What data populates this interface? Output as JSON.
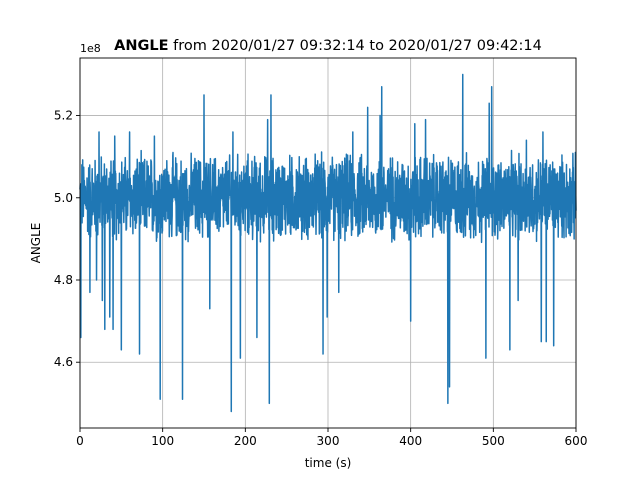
{
  "chart_data": {
    "type": "line",
    "title_bold": "ANGLE",
    "title_rest": " from 2020/01/27 09:32:14 to 2020/01/27 09:42:14",
    "xlabel": "time (s)",
    "ylabel": "ANGLE",
    "offset_label": "1e8",
    "xlim": [
      0,
      600
    ],
    "ylim": [
      4.44,
      5.34
    ],
    "y_scale_note": "values in units of 1e8",
    "xticks": [
      0,
      100,
      200,
      300,
      400,
      500,
      600
    ],
    "xtick_labels": [
      "0",
      "100",
      "200",
      "300",
      "400",
      "500",
      "600"
    ],
    "yticks": [
      4.6,
      4.8,
      5.0,
      5.2
    ],
    "ytick_labels": [
      "4.6",
      "4.8",
      "5.0",
      "5.2"
    ],
    "grid": true,
    "line_color": "#1f77b4",
    "series": [
      {
        "baseline": 5.0,
        "band_low": 4.88,
        "band_high": 5.12,
        "spikes": [
          {
            "x": 1,
            "y": 4.66
          },
          {
            "x": 12,
            "y": 4.77
          },
          {
            "x": 20,
            "y": 4.8
          },
          {
            "x": 27,
            "y": 4.75
          },
          {
            "x": 30,
            "y": 4.68
          },
          {
            "x": 36,
            "y": 4.71
          },
          {
            "x": 40,
            "y": 4.68
          },
          {
            "x": 50,
            "y": 4.63
          },
          {
            "x": 72,
            "y": 4.62
          },
          {
            "x": 97,
            "y": 4.51
          },
          {
            "x": 124,
            "y": 4.51
          },
          {
            "x": 157,
            "y": 4.73
          },
          {
            "x": 183,
            "y": 4.48
          },
          {
            "x": 194,
            "y": 4.61
          },
          {
            "x": 214,
            "y": 4.66
          },
          {
            "x": 229,
            "y": 4.5
          },
          {
            "x": 294,
            "y": 4.62
          },
          {
            "x": 299,
            "y": 4.71
          },
          {
            "x": 313,
            "y": 4.77
          },
          {
            "x": 400,
            "y": 4.7
          },
          {
            "x": 445,
            "y": 4.5
          },
          {
            "x": 447,
            "y": 4.54
          },
          {
            "x": 491,
            "y": 4.61
          },
          {
            "x": 520,
            "y": 4.63
          },
          {
            "x": 530,
            "y": 4.75
          },
          {
            "x": 558,
            "y": 4.65
          },
          {
            "x": 564,
            "y": 4.65
          },
          {
            "x": 573,
            "y": 4.64
          },
          {
            "x": 23,
            "y": 5.16
          },
          {
            "x": 42,
            "y": 5.15
          },
          {
            "x": 60,
            "y": 5.16
          },
          {
            "x": 90,
            "y": 5.15
          },
          {
            "x": 150,
            "y": 5.25
          },
          {
            "x": 185,
            "y": 5.16
          },
          {
            "x": 227,
            "y": 5.19
          },
          {
            "x": 231,
            "y": 5.25
          },
          {
            "x": 330,
            "y": 5.16
          },
          {
            "x": 348,
            "y": 5.22
          },
          {
            "x": 363,
            "y": 5.2
          },
          {
            "x": 365,
            "y": 5.27
          },
          {
            "x": 405,
            "y": 5.18
          },
          {
            "x": 418,
            "y": 5.19
          },
          {
            "x": 463,
            "y": 5.3
          },
          {
            "x": 495,
            "y": 5.23
          },
          {
            "x": 498,
            "y": 5.27
          },
          {
            "x": 540,
            "y": 5.14
          },
          {
            "x": 560,
            "y": 5.16
          }
        ]
      }
    ]
  }
}
